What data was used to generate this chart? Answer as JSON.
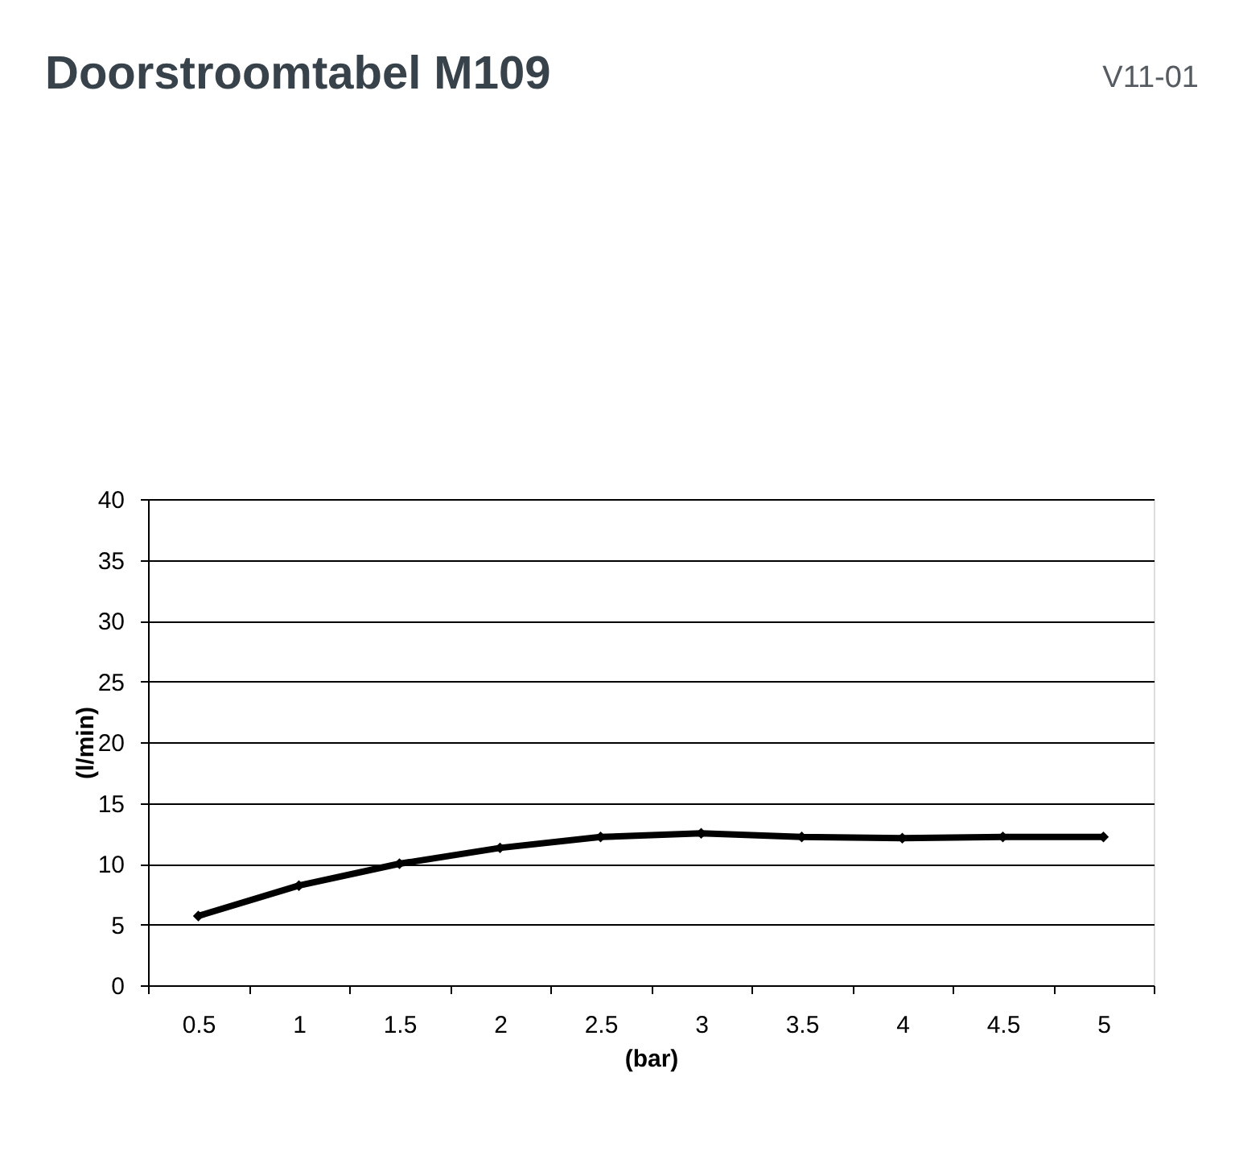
{
  "chart_data": {
    "type": "line",
    "title": "Doorstroomtabel M109",
    "annotations": [
      "V11-01"
    ],
    "xlabel": "(bar)",
    "ylabel": "(l/min)",
    "categories": [
      "0.5",
      "1",
      "1.5",
      "2",
      "2.5",
      "3",
      "3.5",
      "4",
      "4.5",
      "5"
    ],
    "series": [
      {
        "color": "#000000",
        "values": [
          5.7,
          8.2,
          10.0,
          11.3,
          12.2,
          12.5,
          12.2,
          12.1,
          12.2,
          12.2
        ]
      }
    ],
    "ylim": [
      0,
      40
    ],
    "yticks": [
      0,
      5,
      10,
      15,
      20,
      25,
      30,
      35,
      40
    ],
    "grid": "y",
    "marker": "diamond",
    "line_style": "solid",
    "legend": false
  }
}
